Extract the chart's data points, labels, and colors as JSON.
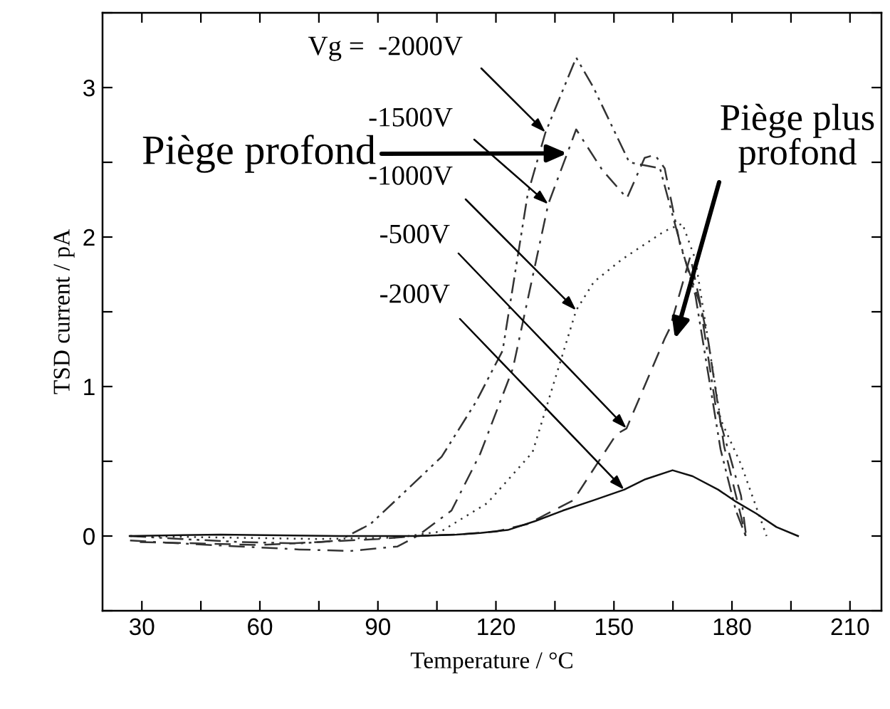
{
  "chart_data": {
    "type": "line",
    "xlabel": "Temperature / °C",
    "ylabel": "TSD current / pA",
    "xlim": [
      20,
      218
    ],
    "ylim": [
      -0.5,
      3.5
    ],
    "xticks": [
      30,
      {
        "value": 45,
        "label": null
      },
      60,
      {
        "value": 75,
        "label": null
      },
      90,
      {
        "value": 105,
        "label": null
      },
      120,
      {
        "value": 135,
        "label": null
      },
      150,
      {
        "value": 165,
        "label": null
      },
      180,
      {
        "value": 195,
        "label": null
      },
      210
    ],
    "yticks": [
      {
        "value": -0.5,
        "label": null
      },
      0,
      {
        "value": 0.5,
        "label": null
      },
      1,
      {
        "value": 1.5,
        "label": null
      },
      2,
      {
        "value": 2.5,
        "label": null
      },
      3,
      {
        "value": 3.5,
        "label": null
      }
    ],
    "grid": false,
    "legend": false,
    "marker": "none",
    "series": [
      {
        "color": "#333333",
        "line_style": "dashdotdot",
        "x": [
          27,
          40,
          55,
          70,
          80,
          88.1,
          95,
          106.2,
          115,
          121.7,
          128.1,
          132.6,
          140.4,
          144.8,
          153.9,
          161.7,
          166.2,
          170.7,
          177.1,
          181,
          183.5
        ],
        "values": [
          0,
          -0.02,
          -0.04,
          -0.05,
          -0.03,
          0.08,
          0.25,
          0.53,
          0.9,
          1.24,
          2.29,
          2.7,
          3.2,
          3.0,
          2.5,
          2.46,
          2.02,
          1.61,
          0.58,
          0.17,
          0
        ]
      },
      {
        "color": "#333333",
        "line_style": "dashdot",
        "x": [
          27,
          40,
          55,
          70,
          83,
          95,
          100,
          108.7,
          116,
          124.3,
          133.3,
          140.4,
          147,
          153.3,
          157.8,
          160.4,
          162.9,
          166.8,
          171.9,
          175.8,
          182.3,
          183.6
        ],
        "values": [
          -0.03,
          -0.05,
          -0.07,
          -0.09,
          -0.1,
          -0.07,
          0,
          0.17,
          0.55,
          1.12,
          2.22,
          2.72,
          2.45,
          2.26,
          2.53,
          2.55,
          2.46,
          1.95,
          1.55,
          0.88,
          0.27,
          0
        ]
      },
      {
        "color": "#333333",
        "line_style": "dotted",
        "x": [
          27,
          50,
          75,
          95,
          106,
          117.8,
          129.3,
          140.4,
          144.9,
          152,
          162.9,
          167.4,
          170.7,
          177.1,
          182.3,
          188.8
        ],
        "values": [
          0,
          -0.01,
          -0.02,
          -0.01,
          0.03,
          0.22,
          0.56,
          1.51,
          1.7,
          1.85,
          2.04,
          2.09,
          1.85,
          0.78,
          0.48,
          0
        ]
      },
      {
        "color": "#333333",
        "line_style": "dashed",
        "x": [
          29.5,
          45,
          60,
          75,
          90,
          99.7,
          110,
          120,
          128,
          139.7,
          150.6,
          153.2,
          162.9,
          164.2,
          169.4,
          174,
          178,
          183.5
        ],
        "values": [
          -0.04,
          -0.05,
          -0.06,
          -0.04,
          -0.02,
          0,
          0.01,
          0.03,
          0.08,
          0.24,
          0.68,
          0.72,
          1.32,
          1.39,
          1.87,
          1.3,
          0.6,
          0
        ]
      },
      {
        "color": "#111111",
        "line_style": "solid",
        "x": [
          26.9,
          50,
          80,
          100,
          110,
          116,
          123,
          130,
          137,
          144.9,
          152.6,
          158,
          164.9,
          170,
          176.5,
          181,
          186.2,
          191.3,
          196.8
        ],
        "values": [
          0,
          0.01,
          0,
          0,
          0.01,
          0.02,
          0.04,
          0.1,
          0.17,
          0.24,
          0.31,
          0.38,
          0.44,
          0.4,
          0.31,
          0.23,
          0.15,
          0.06,
          0
        ]
      }
    ],
    "annotations": [
      {
        "text": "Vg =  -2000V",
        "x": 132.6,
        "y": 2.7
      },
      {
        "text": "-1500V",
        "x": 133.3,
        "y": 2.22
      },
      {
        "text": "-1000V",
        "x": 140.4,
        "y": 1.51
      },
      {
        "text": "-500V",
        "x": 153.2,
        "y": 0.72
      },
      {
        "text": "-200V",
        "x": 152.6,
        "y": 0.31
      },
      {
        "text": "Piège profond",
        "x": 138.1,
        "y": 2.56
      },
      "Piège plus\nprofond"
    ]
  }
}
